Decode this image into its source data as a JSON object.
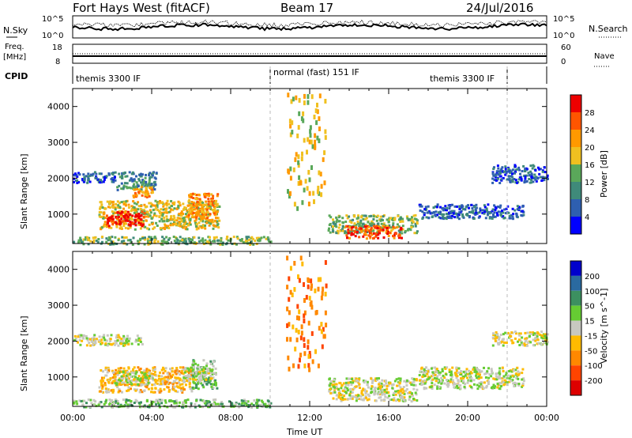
{
  "header": {
    "station": "Fort Hays West (fitACF)",
    "beam": "Beam 17",
    "date": "24/Jul/2016"
  },
  "top_panels": {
    "nsky_label": "N.Sky",
    "nsky_ticks": [
      "10^5",
      "10^0"
    ],
    "nsearch_label": "N.Search",
    "nsearch_ticks": [
      "10^5",
      "10^0"
    ],
    "freq_label_1": "Freq.",
    "freq_label_2": "[MHz]",
    "freq_ticks": [
      "18",
      "8"
    ],
    "nave_label": "Nave",
    "nave_ticks": [
      "60",
      "0"
    ],
    "cpid_label": "CPID",
    "cpid_segments": [
      {
        "label": "themis 3300 IF",
        "start_h": 0.0,
        "end_h": 10.0
      },
      {
        "label": "normal (fast) 151 IF",
        "start_h": 10.0,
        "end_h": 22.0
      },
      {
        "label": "themis 3300 IF",
        "start_h": 22.0,
        "end_h": 24.0
      }
    ]
  },
  "axes": {
    "xlabel": "Time UT",
    "x_ticks": [
      "00:00",
      "04:00",
      "08:00",
      "12:00",
      "16:00",
      "20:00",
      "00:00"
    ],
    "ylabel": "Slant Range [km]",
    "y_ticks": [
      "1000",
      "2000",
      "3000",
      "4000"
    ]
  },
  "colors": {
    "power": [
      "#0000ff",
      "#2e5fb0",
      "#3f8a7a",
      "#5aa85a",
      "#f0c020",
      "#ff9900",
      "#ff5500",
      "#ee0000"
    ],
    "velocity": [
      "#0000cc",
      "#2a6aa0",
      "#3c9060",
      "#66cc33",
      "#c8c8c0",
      "#ffbb00",
      "#ff8800",
      "#ff4400",
      "#dd0000"
    ]
  },
  "chart_data": [
    {
      "type": "heatmap",
      "title": "Power",
      "colorbar_label": "Power [dB]",
      "colorbar_ticks": [
        "4",
        "8",
        "12",
        "16",
        "20",
        "24",
        "28"
      ],
      "xlim_hours": [
        0,
        24
      ],
      "ylim_km": [
        180,
        4500
      ],
      "regions": [
        {
          "t0": 0.0,
          "t1": 2.2,
          "r0": 1900,
          "r1": 2200,
          "level": 1
        },
        {
          "t0": 2.2,
          "t1": 4.2,
          "r0": 1700,
          "r1": 2200,
          "level": 2
        },
        {
          "t0": 3.0,
          "t1": 4.0,
          "r0": 1500,
          "r1": 1800,
          "level": 5
        },
        {
          "t0": 1.3,
          "t1": 7.4,
          "r0": 600,
          "r1": 1400,
          "level": 4
        },
        {
          "t0": 1.6,
          "t1": 3.6,
          "r0": 700,
          "r1": 1100,
          "level": 7
        },
        {
          "t0": 5.8,
          "t1": 7.3,
          "r0": 900,
          "r1": 1600,
          "level": 5
        },
        {
          "t0": 0.0,
          "t1": 10.0,
          "r0": 180,
          "r1": 400,
          "level": 3
        },
        {
          "t0": 12.9,
          "t1": 17.4,
          "r0": 500,
          "r1": 1000,
          "level": 3
        },
        {
          "t0": 13.8,
          "t1": 16.6,
          "r0": 350,
          "r1": 700,
          "level": 6
        },
        {
          "t0": 17.5,
          "t1": 22.8,
          "r0": 900,
          "r1": 1300,
          "level": 1
        },
        {
          "t0": 21.2,
          "t1": 24.0,
          "r0": 1900,
          "r1": 2400,
          "level": 1
        },
        {
          "t0": 10.8,
          "t1": 12.8,
          "r0": 1200,
          "r1": 4400,
          "level": 4
        }
      ]
    },
    {
      "type": "heatmap",
      "title": "Velocity",
      "colorbar_label": "Velocity [m s^-1]",
      "colorbar_ticks": [
        "200",
        "100",
        "50",
        "15",
        "-15",
        "-50",
        "-100",
        "-200"
      ],
      "xlim_hours": [
        0,
        24
      ],
      "ylim_km": [
        180,
        4500
      ],
      "regions": [
        {
          "t0": 0.0,
          "t1": 3.5,
          "r0": 1900,
          "r1": 2200,
          "level": 4
        },
        {
          "t0": 1.3,
          "t1": 6.0,
          "r0": 600,
          "r1": 1300,
          "level": 5
        },
        {
          "t0": 2.0,
          "t1": 4.0,
          "r0": 800,
          "r1": 1200,
          "level": 4
        },
        {
          "t0": 6.0,
          "t1": 7.3,
          "r0": 700,
          "r1": 1500,
          "level": 3
        },
        {
          "t0": 5.5,
          "t1": 7.0,
          "r0": 900,
          "r1": 1300,
          "level": 4
        },
        {
          "t0": 0.0,
          "t1": 10.0,
          "r0": 180,
          "r1": 400,
          "level": 3
        },
        {
          "t0": 12.9,
          "t1": 17.4,
          "r0": 350,
          "r1": 1000,
          "level": 4
        },
        {
          "t0": 17.5,
          "t1": 22.8,
          "r0": 700,
          "r1": 1300,
          "level": 4
        },
        {
          "t0": 21.2,
          "t1": 24.0,
          "r0": 1900,
          "r1": 2300,
          "level": 4
        },
        {
          "t0": 10.8,
          "t1": 12.8,
          "r0": 1200,
          "r1": 4400,
          "level": 6
        }
      ]
    }
  ]
}
